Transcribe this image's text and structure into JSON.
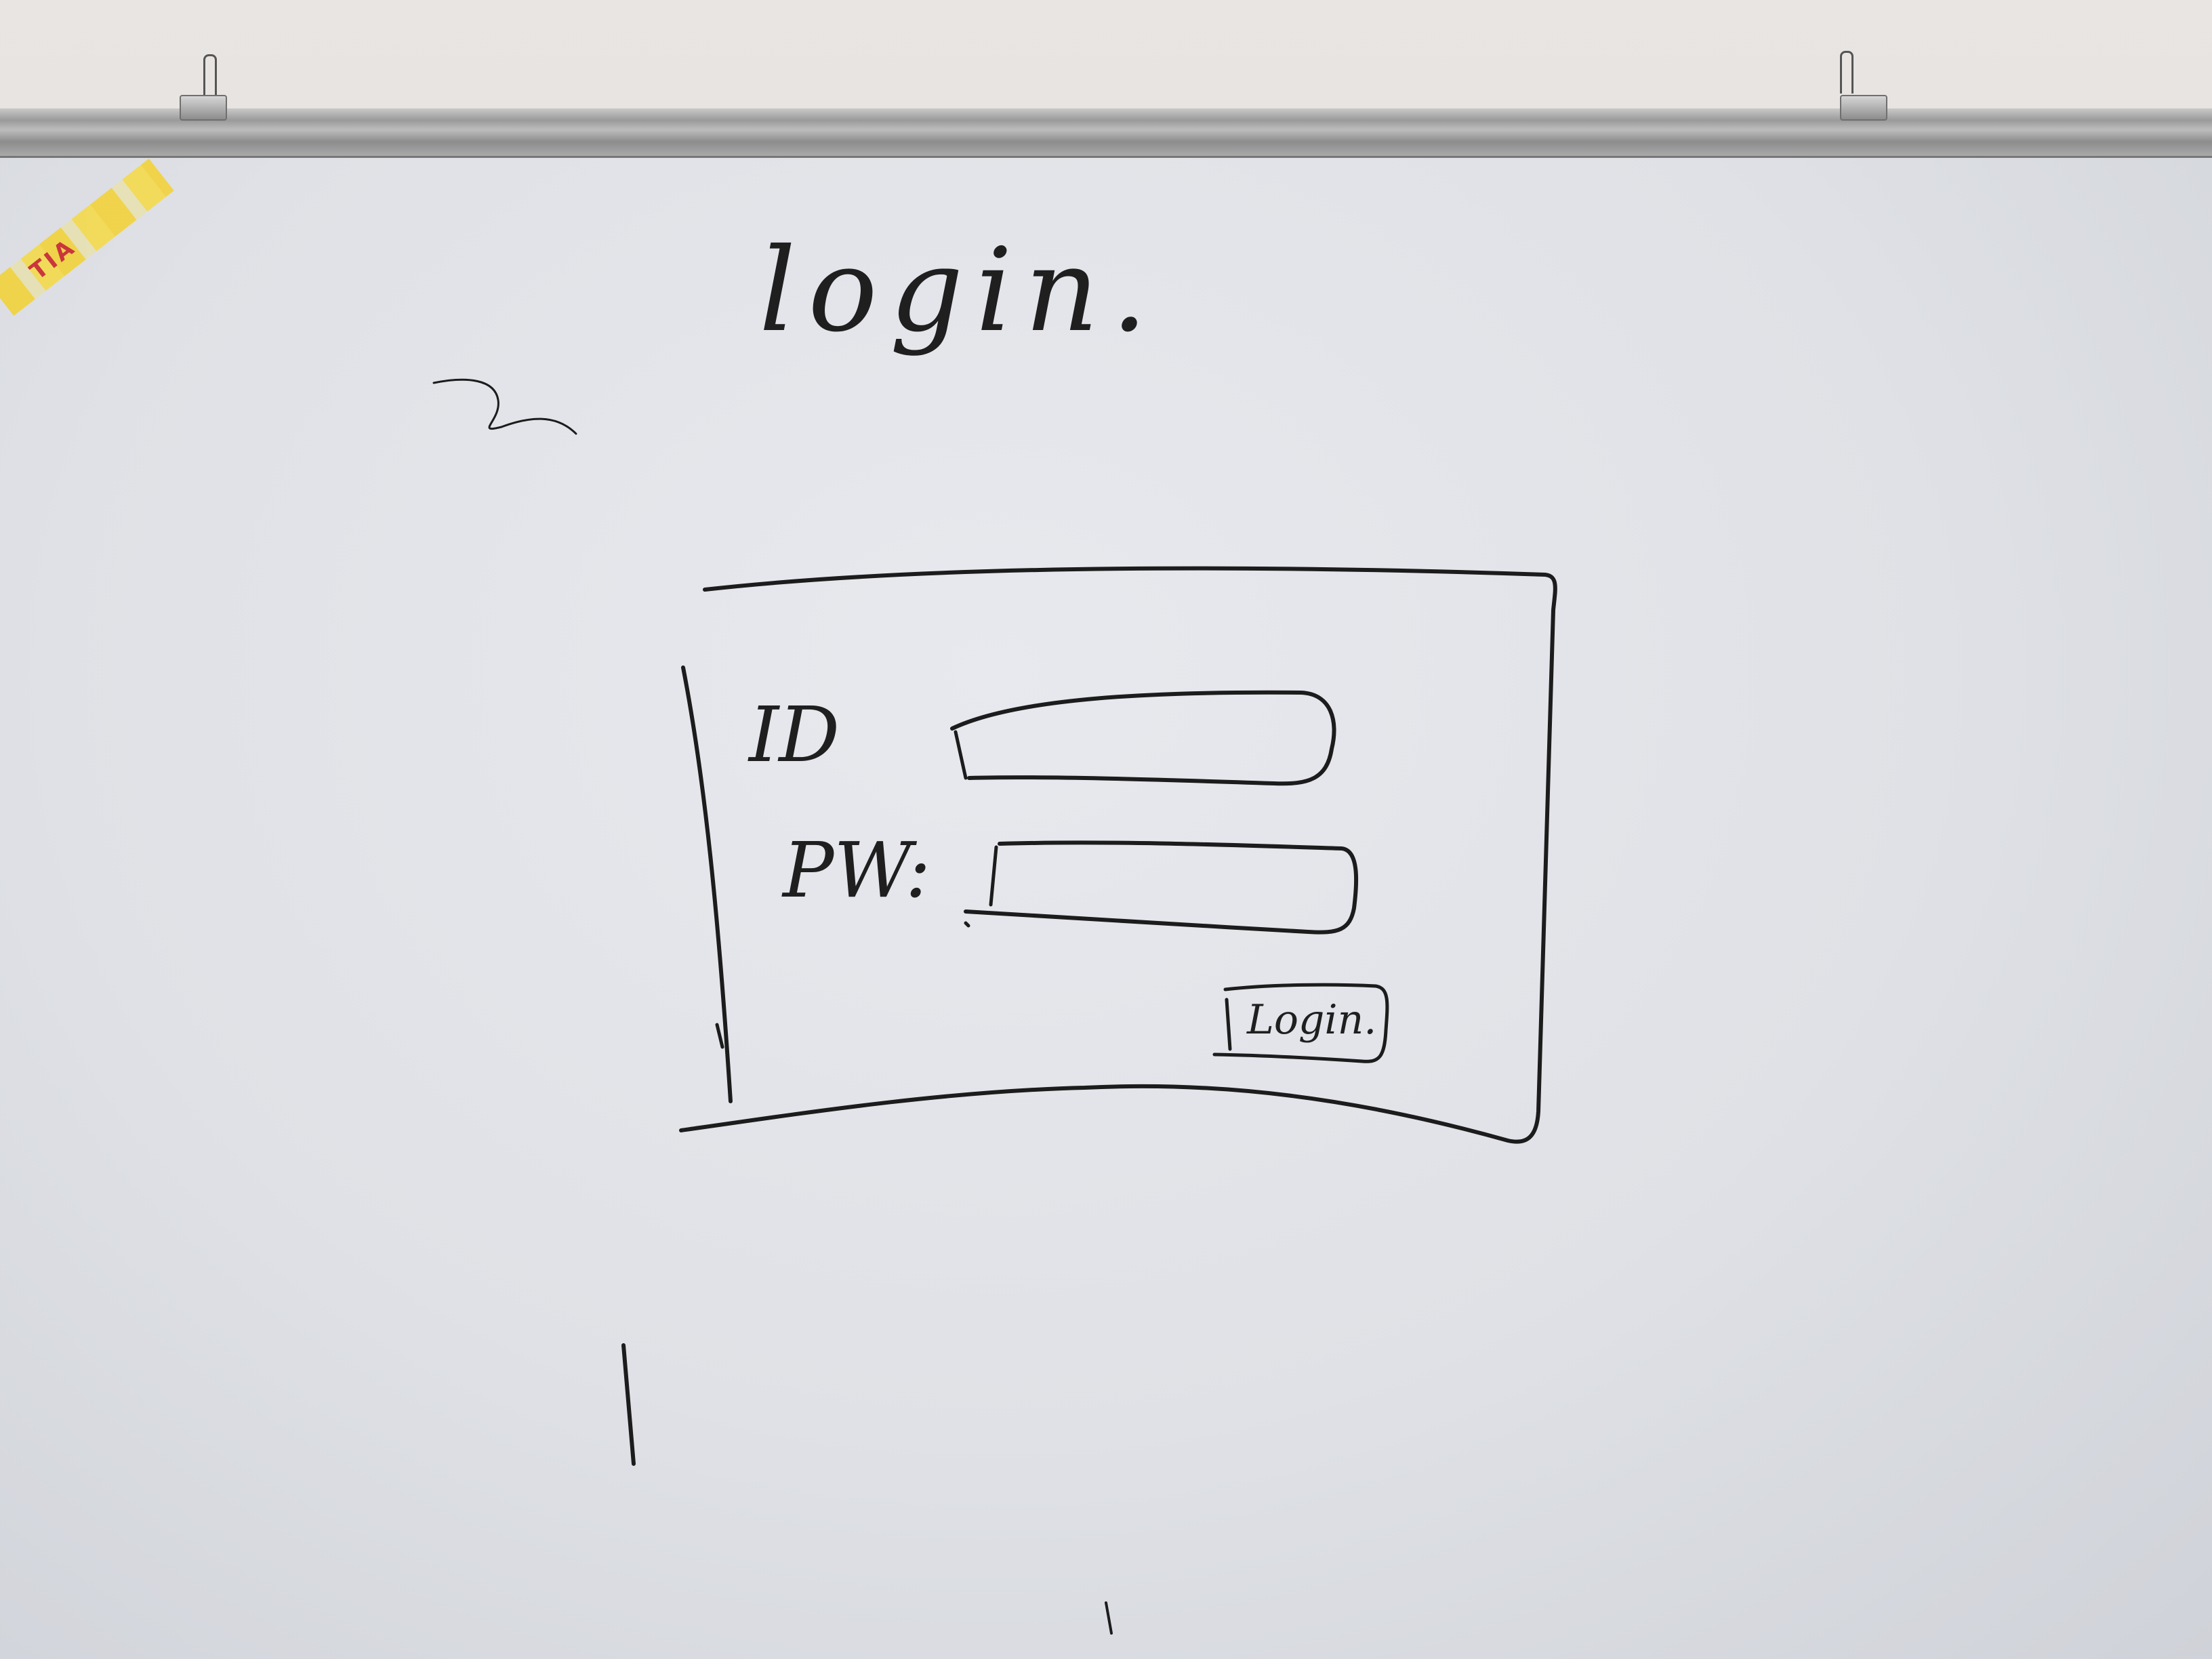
{
  "whiteboard": {
    "title": "login.",
    "form": {
      "id_label": "ID",
      "pw_label": "PW:",
      "login_button_label": "Login."
    },
    "tape_label": "TIA"
  }
}
